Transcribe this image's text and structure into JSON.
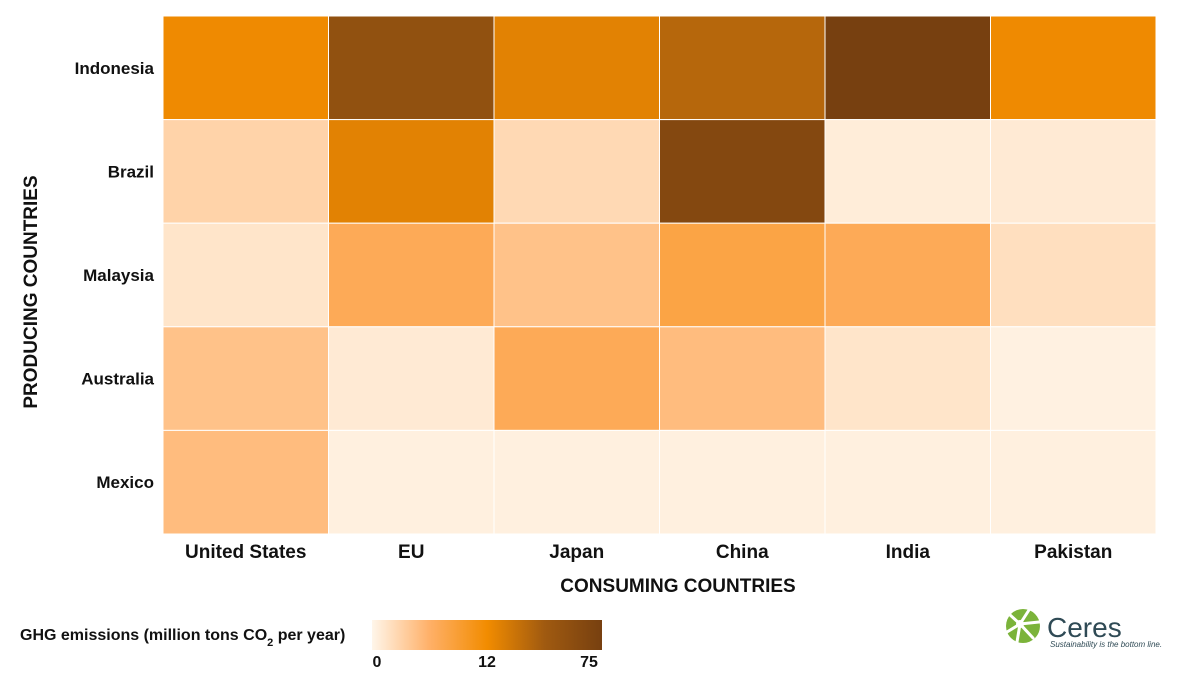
{
  "chart_data": {
    "type": "heatmap",
    "title": "",
    "xlabel": "CONSUMING COUNTRIES",
    "ylabel": "PRODUCING COUNTRIES",
    "x_categories": [
      "United States",
      "EU",
      "Japan",
      "China",
      "India",
      "Pakistan"
    ],
    "y_categories": [
      "Indonesia",
      "Brazil",
      "Malaysia",
      "Australia",
      "Mexico"
    ],
    "values": [
      [
        13,
        55,
        18,
        35,
        75,
        13
      ],
      [
        3,
        18,
        2.5,
        65,
        0.8,
        1
      ],
      [
        1.5,
        7,
        4.5,
        8,
        7,
        2
      ],
      [
        4.5,
        1,
        7,
        5,
        1.5,
        0.4
      ],
      [
        5,
        0.5,
        0.5,
        0.5,
        0.5,
        0.5
      ]
    ],
    "colorbar": {
      "label": "GHG emissions (million tons CO",
      "label_sub": "2",
      "label_suffix": " per year)",
      "ticks": [
        "0",
        "12",
        "75"
      ],
      "tick_values": [
        0,
        12,
        75
      ],
      "colors": [
        "#fff6ea",
        "#ffb068",
        "#f28c00",
        "#a05a10",
        "#774010"
      ]
    }
  },
  "brand": {
    "name": "Ceres",
    "tagline": "Sustainability is the bottom line.",
    "colors": [
      "#6aa329",
      "#8cc04a",
      "#2f4a55"
    ]
  }
}
